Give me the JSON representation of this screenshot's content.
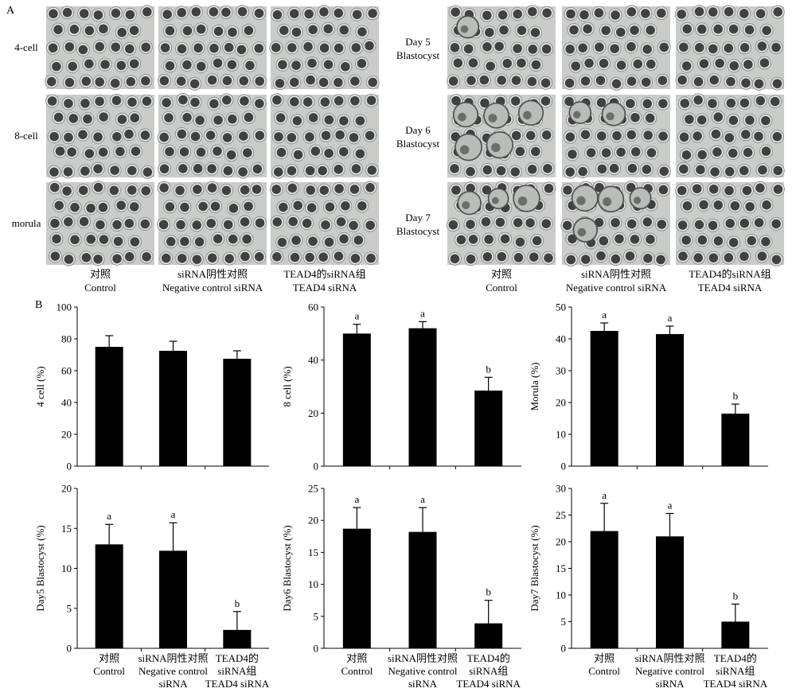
{
  "panel_labels": {
    "a": "A",
    "b": "B"
  },
  "micrographs": {
    "left_rows": [
      "4-cell",
      "8-cell",
      "morula"
    ],
    "right_rows": [
      [
        "Day 5",
        "Blastocyst"
      ],
      [
        "Day 6",
        "Blastocyst"
      ],
      [
        "Day 7",
        "Blastocyst"
      ]
    ],
    "columns": [
      [
        "对照",
        "Control"
      ],
      [
        "siRNA阴性对照",
        "Negative control siRNA"
      ],
      [
        "TEAD4的siRNA组",
        "TEAD4 siRNA"
      ]
    ],
    "blastocysts_per_image": [
      [
        0,
        0,
        0
      ],
      [
        0,
        0,
        0
      ],
      [
        0,
        0,
        0
      ],
      [
        1,
        0,
        0
      ],
      [
        5,
        2,
        0
      ],
      [
        3,
        4,
        0
      ]
    ]
  },
  "colors": {
    "bar": "#000000",
    "axis": "#000000",
    "micrograph_bg": "#c9ccc9",
    "embryo": "#3e4240"
  },
  "top_row_categories": [
    "",
    "",
    ""
  ],
  "bottom_row_categories": [
    [
      "对照",
      "Control"
    ],
    [
      "siRNA阴性对照",
      "Negative control",
      "siRNA"
    ],
    [
      "TEAD4的",
      "siRNA组",
      "TEAD4 siRNA"
    ]
  ],
  "bottom_row_categories_alt": [
    [
      "对照",
      "Control"
    ],
    [
      "siRNA阴性对照",
      "Negative control",
      "siRNA"
    ],
    [
      "TEAD4的",
      "siRNA组",
      "TEAD4 siRNA"
    ]
  ],
  "bottom_row_categories_right": [
    [
      "对照",
      "Control"
    ],
    [
      "siRNA阴性对照",
      "Negative control",
      "siRNA"
    ],
    [
      "TEAD4的",
      "siRNA组",
      "TEAD4 siRNA"
    ]
  ],
  "chart_data": [
    {
      "type": "bar",
      "ylabel": "4 cell (%)",
      "ylim": [
        0,
        100
      ],
      "yticks": [
        0,
        20,
        40,
        60,
        80,
        100
      ],
      "values": [
        75,
        72.5,
        67.5
      ],
      "errors": [
        7,
        6,
        5
      ],
      "sig": [
        "",
        "",
        ""
      ]
    },
    {
      "type": "bar",
      "ylabel": "8 cell (%)",
      "ylim": [
        0,
        60
      ],
      "yticks": [
        0,
        20,
        40,
        60
      ],
      "values": [
        50,
        52,
        28.5
      ],
      "errors": [
        3.5,
        2.5,
        5
      ],
      "sig": [
        "a",
        "a",
        "b"
      ]
    },
    {
      "type": "bar",
      "ylabel": "Morula (%)",
      "ylim": [
        0,
        50
      ],
      "yticks": [
        0,
        10,
        20,
        30,
        40,
        50
      ],
      "values": [
        42.5,
        41.5,
        16.5
      ],
      "errors": [
        2.5,
        2.5,
        3
      ],
      "sig": [
        "a",
        "a",
        "b"
      ]
    },
    {
      "type": "bar",
      "ylabel": "Day5 Blastocyst (%)",
      "ylim": [
        0,
        20
      ],
      "yticks": [
        0,
        5,
        10,
        15,
        20
      ],
      "values": [
        13,
        12.2,
        2.3
      ],
      "errors": [
        2.5,
        3.5,
        2.3
      ],
      "sig": [
        "a",
        "a",
        "b"
      ]
    },
    {
      "type": "bar",
      "ylabel": "Day6 Blastocyst (%)",
      "ylim": [
        0,
        25
      ],
      "yticks": [
        0,
        5,
        10,
        15,
        20,
        25
      ],
      "values": [
        18.7,
        18.2,
        3.9
      ],
      "errors": [
        3.3,
        3.8,
        3.6
      ],
      "sig": [
        "a",
        "a",
        "b"
      ]
    },
    {
      "type": "bar",
      "ylabel": "Day7 Blastocyst (%)",
      "ylim": [
        0,
        30
      ],
      "yticks": [
        0,
        5,
        10,
        15,
        20,
        25,
        30
      ],
      "values": [
        22,
        21,
        5
      ],
      "errors": [
        5.2,
        4.3,
        3.3
      ],
      "sig": [
        "a",
        "a",
        "b"
      ]
    }
  ]
}
